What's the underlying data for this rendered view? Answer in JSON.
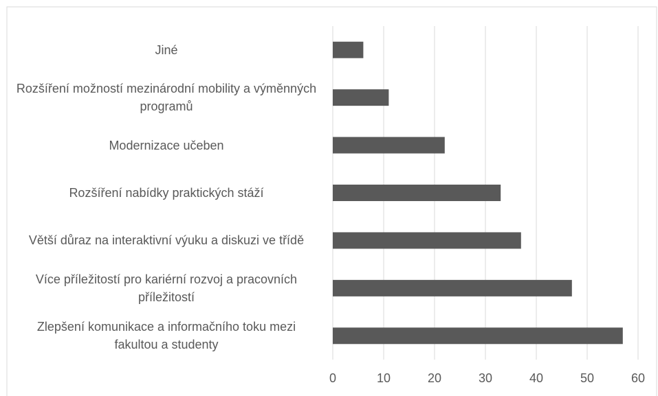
{
  "chart_data": {
    "type": "barh",
    "categories": [
      "Jiné",
      "Rozšíření možností mezinárodní mobility a výměnných programů",
      "Modernizace učeben",
      "Rozšíření nabídky praktických stáží",
      "Větší důraz na interaktivní výuku a diskuzi ve třídě",
      "Více příležitostí pro kariérní rozvoj a pracovních příležitostí",
      "Zlepšení komunikace a informačního toku mezi fakultou a studenty"
    ],
    "values": [
      6,
      11,
      22,
      33,
      37,
      47,
      57
    ],
    "color": "#595959",
    "xlim": [
      0,
      60
    ],
    "xticks": [
      0,
      10,
      20,
      30,
      40,
      50,
      60
    ],
    "grid": true
  }
}
